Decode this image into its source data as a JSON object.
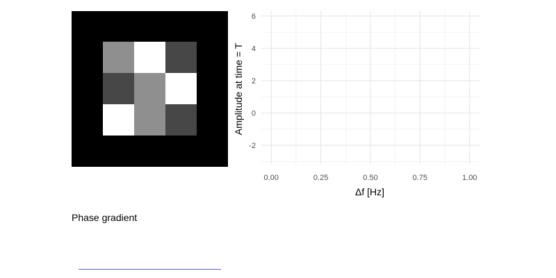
{
  "image_panel": {
    "background": "#000000",
    "rows": [
      [
        "#8f8f8f",
        "#ffffff",
        "#474747"
      ],
      [
        "#474747",
        "#8f8f8f",
        "#ffffff"
      ],
      [
        "#ffffff",
        "#8f8f8f",
        "#474747"
      ]
    ]
  },
  "chart_data": {
    "type": "line",
    "title": "",
    "xlabel": "Δf [Hz]",
    "ylabel": "Amplitude at time = T",
    "xlim": [
      -0.05,
      1.05
    ],
    "ylim": [
      -3.2,
      6.3
    ],
    "x_ticks": [
      0.0,
      0.25,
      0.5,
      0.75,
      1.0
    ],
    "x_tick_labels": [
      "0.00",
      "0.25",
      "0.50",
      "0.75",
      "1.00"
    ],
    "y_ticks": [
      -2,
      0,
      2,
      4,
      6
    ],
    "y_tick_labels": [
      "-2",
      "0",
      "2",
      "4",
      "6"
    ],
    "grid": true,
    "series": []
  },
  "controls": {
    "slider_label": "Phase gradient",
    "slider_color": "#5a5ad6"
  }
}
